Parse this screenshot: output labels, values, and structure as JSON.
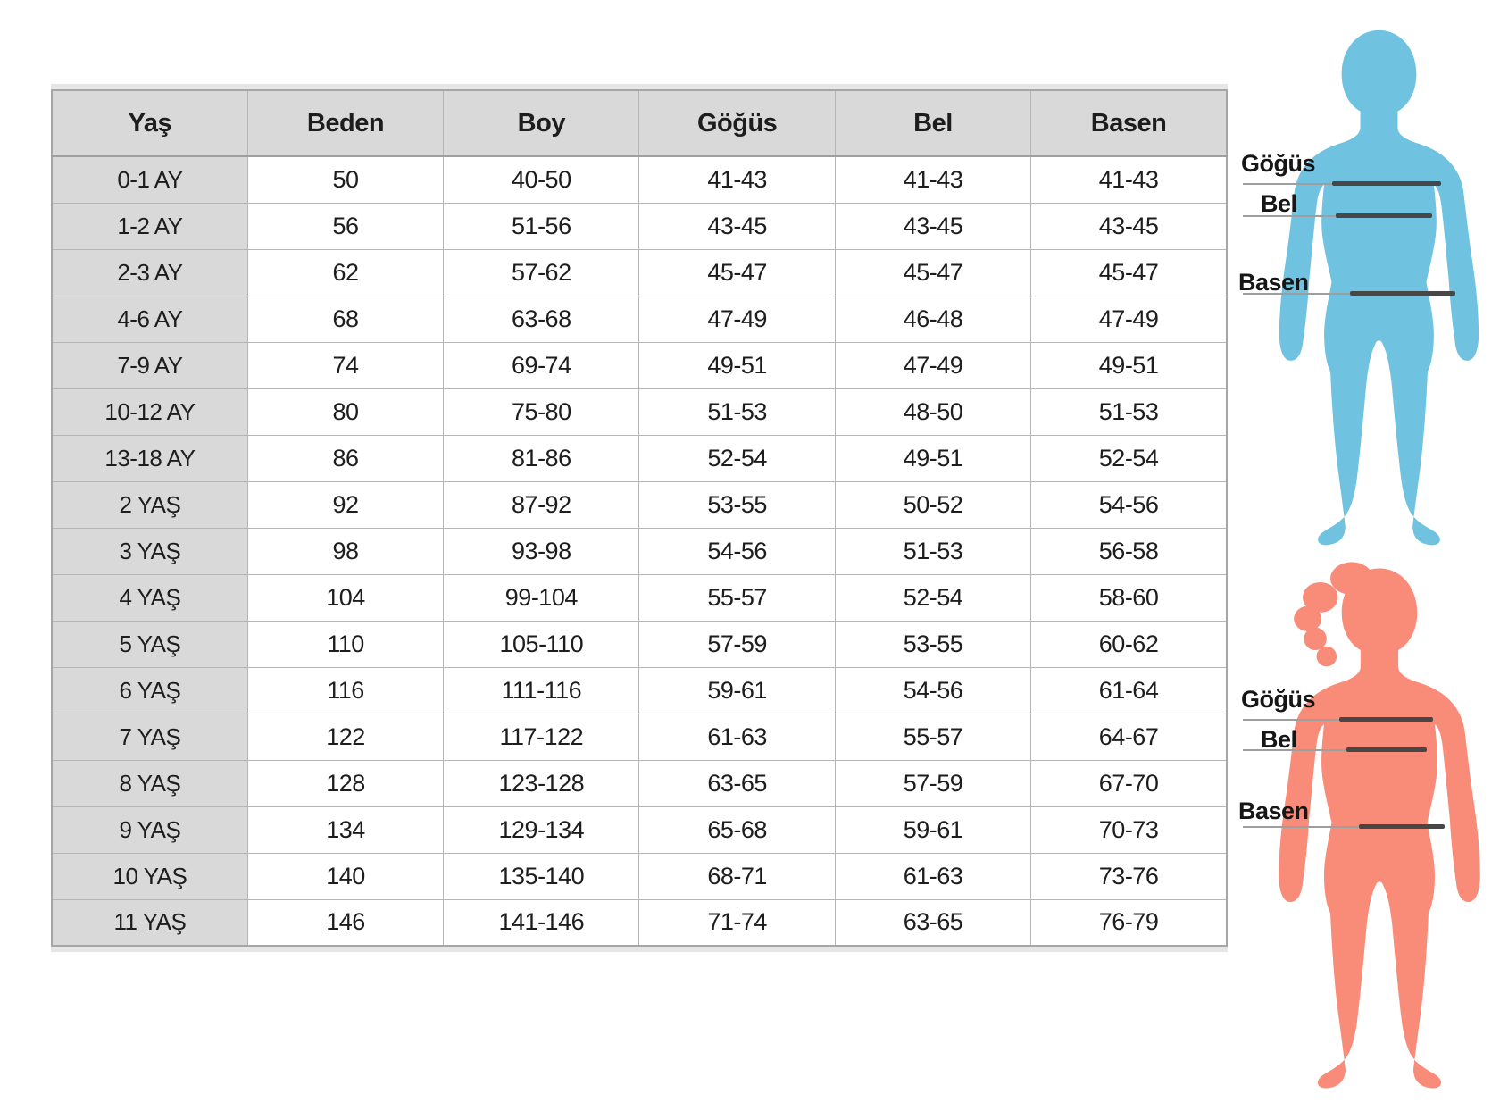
{
  "chart_data": {
    "type": "table",
    "columns": [
      "Yaş",
      "Beden",
      "Boy",
      "Göğüs",
      "Bel",
      "Basen"
    ],
    "rows": [
      [
        "0-1 AY",
        "50",
        "40-50",
        "41-43",
        "41-43",
        "41-43"
      ],
      [
        "1-2 AY",
        "56",
        "51-56",
        "43-45",
        "43-45",
        "43-45"
      ],
      [
        "2-3 AY",
        "62",
        "57-62",
        "45-47",
        "45-47",
        "45-47"
      ],
      [
        "4-6 AY",
        "68",
        "63-68",
        "47-49",
        "46-48",
        "47-49"
      ],
      [
        "7-9 AY",
        "74",
        "69-74",
        "49-51",
        "47-49",
        "49-51"
      ],
      [
        "10-12 AY",
        "80",
        "75-80",
        "51-53",
        "48-50",
        "51-53"
      ],
      [
        "13-18 AY",
        "86",
        "81-86",
        "52-54",
        "49-51",
        "52-54"
      ],
      [
        "2 YAŞ",
        "92",
        "87-92",
        "53-55",
        "50-52",
        "54-56"
      ],
      [
        "3 YAŞ",
        "98",
        "93-98",
        "54-56",
        "51-53",
        "56-58"
      ],
      [
        "4 YAŞ",
        "104",
        "99-104",
        "55-57",
        "52-54",
        "58-60"
      ],
      [
        "5 YAŞ",
        "110",
        "105-110",
        "57-59",
        "53-55",
        "60-62"
      ],
      [
        "6 YAŞ",
        "116",
        "111-116",
        "59-61",
        "54-56",
        "61-64"
      ],
      [
        "7 YAŞ",
        "122",
        "117-122",
        "61-63",
        "55-57",
        "64-67"
      ],
      [
        "8 YAŞ",
        "128",
        "123-128",
        "63-65",
        "57-59",
        "67-70"
      ],
      [
        "9 YAŞ",
        "134",
        "129-134",
        "65-68",
        "59-61",
        "70-73"
      ],
      [
        "10 YAŞ",
        "140",
        "135-140",
        "68-71",
        "61-63",
        "73-76"
      ],
      [
        "11 YAŞ",
        "146",
        "141-146",
        "71-74",
        "63-65",
        "76-79"
      ]
    ]
  },
  "figures": {
    "boy": {
      "color": "#6fc2e0",
      "labels": {
        "chest": "Göğüs",
        "waist": "Bel",
        "hip": "Basen"
      }
    },
    "girl": {
      "color": "#f98c79",
      "labels": {
        "chest": "Göğüs",
        "waist": "Bel",
        "hip": "Basen"
      }
    }
  },
  "colors": {
    "header_bg": "#d9d9d9",
    "measure_line_dark": "#474747",
    "measure_line_light": "#9e9e9e"
  }
}
